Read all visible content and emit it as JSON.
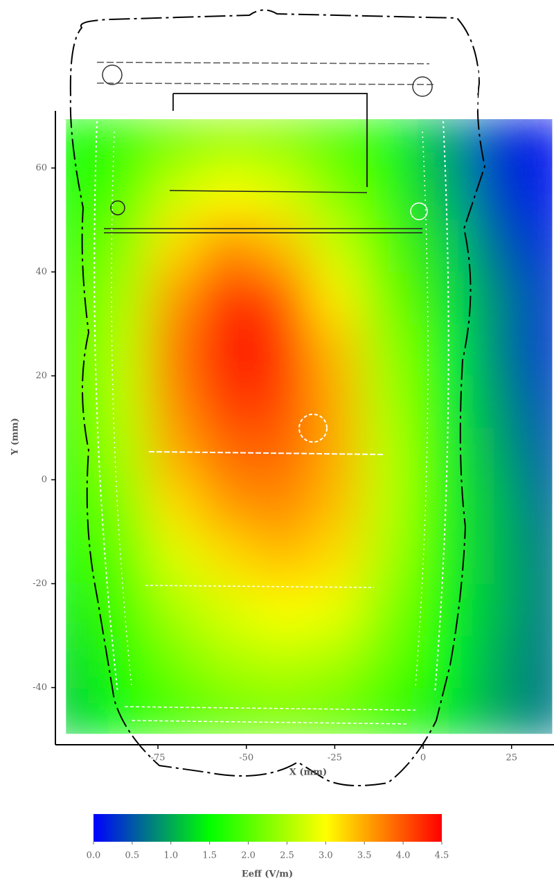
{
  "chart_data": {
    "type": "heatmap",
    "x_label": "X (mm)",
    "y_label": "Y (mm)",
    "xlim": [
      -104,
      37
    ],
    "ylim": [
      -51,
      71
    ],
    "xticks": [
      -75,
      -50,
      -25,
      0,
      25
    ],
    "yticks": [
      60,
      40,
      20,
      0,
      -20,
      -40
    ],
    "extent": [
      -101,
      36.5,
      -48.9,
      69.4
    ],
    "x": [
      -100,
      -85,
      -70,
      -55,
      -40,
      -25,
      -10,
      5,
      20,
      35
    ],
    "y": [
      65,
      55,
      45,
      35,
      25,
      15,
      5,
      -5,
      -15,
      -25,
      -35,
      -45
    ],
    "z": [
      [
        1.5,
        1.8,
        2.2,
        2.4,
        2.3,
        2.0,
        1.6,
        1.0,
        0.3,
        0.1
      ],
      [
        1.6,
        2.0,
        2.7,
        3.0,
        2.8,
        2.3,
        1.8,
        1.1,
        0.4,
        0.1
      ],
      [
        1.7,
        2.3,
        3.2,
        3.7,
        3.4,
        2.7,
        2.0,
        1.3,
        0.6,
        0.2
      ],
      [
        1.8,
        2.5,
        3.6,
        4.3,
        4.0,
        3.1,
        2.2,
        1.4,
        0.8,
        0.3
      ],
      [
        1.8,
        2.6,
        3.8,
        4.5,
        4.2,
        3.4,
        2.4,
        1.5,
        0.8,
        0.3
      ],
      [
        1.8,
        2.6,
        3.7,
        4.2,
        4.1,
        3.5,
        2.5,
        1.6,
        0.9,
        0.4
      ],
      [
        1.7,
        2.5,
        3.5,
        3.9,
        3.9,
        3.5,
        2.6,
        1.7,
        1.0,
        0.5
      ],
      [
        1.6,
        2.3,
        3.2,
        3.6,
        3.7,
        3.4,
        2.6,
        1.7,
        1.1,
        0.6
      ],
      [
        1.5,
        2.1,
        2.8,
        3.2,
        3.4,
        3.2,
        2.5,
        1.7,
        1.1,
        0.7
      ],
      [
        1.4,
        1.9,
        2.5,
        2.8,
        3.0,
        2.9,
        2.3,
        1.6,
        1.1,
        0.7
      ],
      [
        1.3,
        1.7,
        2.2,
        2.5,
        2.6,
        2.5,
        2.1,
        1.5,
        1.0,
        0.7
      ],
      [
        1.2,
        1.5,
        1.9,
        2.1,
        2.2,
        2.1,
        1.8,
        1.4,
        1.0,
        0.7
      ]
    ],
    "colormap": [
      "#0000ff",
      "#00ff00",
      "#ffff00",
      "#ff0000"
    ],
    "colorbar_label": "Eeff (V/m)",
    "clim": [
      0,
      4.5
    ],
    "colorbar_ticks": [
      {
        "value": 0,
        "label": "0.0"
      },
      0.5,
      {
        "value": 1,
        "label": "1.0"
      },
      1.5,
      {
        "value": 2,
        "label": "2.0"
      },
      2.5,
      {
        "value": 3,
        "label": "3.0"
      },
      3.5,
      {
        "value": 4,
        "label": "4.0"
      },
      4.5
    ]
  }
}
